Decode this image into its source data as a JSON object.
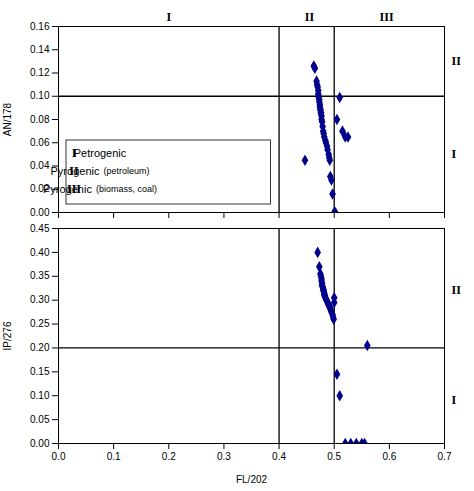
{
  "chart_data": [
    {
      "type": "scatter",
      "ylabel": "AN/178",
      "x": [
        0.447,
        0.463,
        0.465,
        0.468,
        0.469,
        0.47,
        0.471,
        0.471,
        0.472,
        0.472,
        0.473,
        0.473,
        0.474,
        0.474,
        0.475,
        0.475,
        0.476,
        0.476,
        0.477,
        0.477,
        0.478,
        0.479,
        0.48,
        0.481,
        0.482,
        0.484,
        0.485,
        0.487,
        0.488,
        0.49,
        0.491,
        0.492,
        0.493,
        0.495,
        0.497,
        0.5,
        0.502,
        0.505,
        0.51,
        0.515,
        0.52,
        0.525
      ],
      "values": [
        0.045,
        0.126,
        0.124,
        0.113,
        0.11,
        0.108,
        0.105,
        0.102,
        0.1,
        0.099,
        0.097,
        0.095,
        0.093,
        0.091,
        0.089,
        0.088,
        0.086,
        0.085,
        0.083,
        0.08,
        0.078,
        0.074,
        0.07,
        0.068,
        0.065,
        0.062,
        0.06,
        0.057,
        0.054,
        0.05,
        0.047,
        0.045,
        0.031,
        0.028,
        0.016,
        0.0,
        0.0,
        0.08,
        0.099,
        0.07,
        0.065,
        0.065
      ],
      "color": "#00008B",
      "marker": "diamond",
      "xlim": [
        0.0,
        0.7
      ],
      "ylim": [
        0.0,
        0.16
      ],
      "xticks": [
        0.0,
        0.1,
        0.2,
        0.3,
        0.4,
        0.5,
        0.6,
        0.7
      ],
      "yticks": [
        {
          "value": 0.0,
          "label": "0.00"
        },
        {
          "value": 0.02,
          "label": "0.02"
        },
        {
          "value": 0.04,
          "label": "0.04"
        },
        {
          "value": 0.06,
          "label": "0.06"
        },
        {
          "value": 0.08,
          "label": "0.08"
        },
        {
          "value": 0.1,
          "label": "0.10"
        },
        {
          "value": 0.12,
          "label": "0.12"
        },
        {
          "value": 0.14,
          "label": "0.14"
        },
        {
          "value": 0.16,
          "label": "0.16"
        }
      ],
      "tick_labels": "y",
      "grid": false,
      "vlines": [
        0.4,
        0.5
      ],
      "hline": 0.1,
      "annotations": [
        {
          "text": "I",
          "x": 0.2
        },
        {
          "text": "II",
          "x": 0.455
        },
        {
          "text": "III",
          "x": 0.595
        },
        {
          "text": "II",
          "y": 0.13
        },
        {
          "text": "I",
          "y": 0.05
        }
      ],
      "annotation_box": [
        {
          "key": "I",
          "text": "Petrogenic"
        },
        {
          "key": "II",
          "text": "Pyrogenic",
          "detail": "(petroleum)"
        },
        {
          "key": "III",
          "text": "Pyrogenic",
          "detail": "(biomass, coal)"
        }
      ]
    },
    {
      "type": "scatter",
      "ylabel": "IP/276",
      "xlabel": "FL/202",
      "x": [
        0.47,
        0.473,
        0.475,
        0.476,
        0.477,
        0.477,
        0.478,
        0.478,
        0.479,
        0.48,
        0.48,
        0.481,
        0.481,
        0.482,
        0.482,
        0.483,
        0.483,
        0.484,
        0.485,
        0.486,
        0.487,
        0.488,
        0.489,
        0.49,
        0.491,
        0.492,
        0.493,
        0.494,
        0.495,
        0.497,
        0.498,
        0.499,
        0.5,
        0.5,
        0.505,
        0.51,
        0.52,
        0.53,
        0.54,
        0.55,
        0.555,
        0.56
      ],
      "values": [
        0.4,
        0.37,
        0.355,
        0.35,
        0.345,
        0.34,
        0.335,
        0.33,
        0.328,
        0.325,
        0.322,
        0.32,
        0.318,
        0.315,
        0.312,
        0.31,
        0.308,
        0.305,
        0.303,
        0.3,
        0.298,
        0.295,
        0.292,
        0.29,
        0.288,
        0.285,
        0.282,
        0.278,
        0.275,
        0.27,
        0.265,
        0.26,
        0.305,
        0.295,
        0.145,
        0.1,
        0.0,
        0.0,
        0.0,
        0.0,
        0.0,
        0.205
      ],
      "color": "#00008B",
      "marker": "diamond",
      "xlim": [
        0.0,
        0.7
      ],
      "ylim": [
        0.0,
        0.45
      ],
      "xticks": [
        {
          "value": 0.0,
          "label": "0.0"
        },
        {
          "value": 0.1,
          "label": "0.1"
        },
        {
          "value": 0.2,
          "label": "0.2"
        },
        {
          "value": 0.3,
          "label": "0.3"
        },
        {
          "value": 0.4,
          "label": "0.4"
        },
        {
          "value": 0.5,
          "label": "0.5"
        },
        {
          "value": 0.6,
          "label": "0.6"
        },
        {
          "value": 0.7,
          "label": "0.7"
        }
      ],
      "yticks": [
        {
          "value": 0.0,
          "label": "0.00"
        },
        {
          "value": 0.05,
          "label": "0.05"
        },
        {
          "value": 0.1,
          "label": "0.10"
        },
        {
          "value": 0.15,
          "label": "0.15"
        },
        {
          "value": 0.2,
          "label": "0.20"
        },
        {
          "value": 0.25,
          "label": "0.25"
        },
        {
          "value": 0.3,
          "label": "0.30"
        },
        {
          "value": 0.35,
          "label": "0.35"
        },
        {
          "value": 0.4,
          "label": "0.40"
        },
        {
          "value": 0.45,
          "label": "0.45"
        }
      ],
      "grid": false,
      "vlines": [
        0.4,
        0.5
      ],
      "hline": 0.2,
      "annotations": [
        {
          "text": "II",
          "y": 0.32
        },
        {
          "text": "I",
          "y": 0.09
        }
      ]
    }
  ]
}
